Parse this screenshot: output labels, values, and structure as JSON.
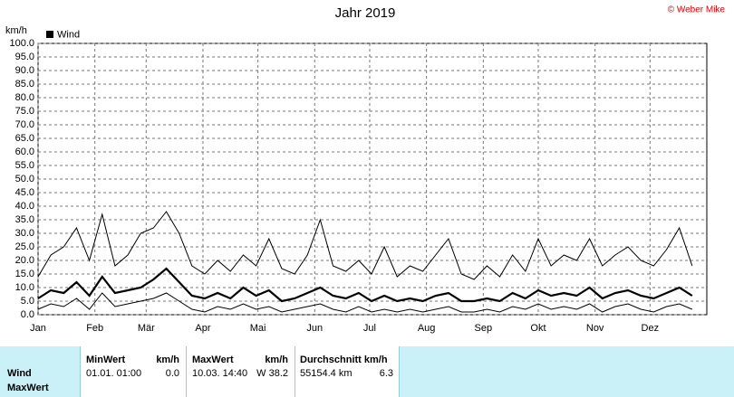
{
  "chart_data": {
    "type": "line",
    "title": "Jahr 2019",
    "copyright": "© Weber Mike",
    "y_label": "km/h",
    "legend": "Wind",
    "grid": true,
    "xlim": [
      1,
      366
    ],
    "xticks": [
      {
        "value": 1,
        "label": "Jan"
      },
      {
        "value": 32,
        "label": "Feb"
      },
      {
        "value": 60,
        "label": "Mär"
      },
      {
        "value": 91,
        "label": "Apr"
      },
      {
        "value": 121,
        "label": "Mai"
      },
      {
        "value": 152,
        "label": "Jun"
      },
      {
        "value": 182,
        "label": "Jul"
      },
      {
        "value": 213,
        "label": "Aug"
      },
      {
        "value": 244,
        "label": "Sep"
      },
      {
        "value": 274,
        "label": "Okt"
      },
      {
        "value": 305,
        "label": "Nov"
      },
      {
        "value": 335,
        "label": "Dez"
      }
    ],
    "ylim": [
      0,
      100
    ],
    "yticks": [
      {
        "value": 0,
        "label": "0.0"
      },
      {
        "value": 5,
        "label": "5.0"
      },
      {
        "value": 10,
        "label": "10.0"
      },
      {
        "value": 15,
        "label": "15.0"
      },
      {
        "value": 20,
        "label": "20.0"
      },
      {
        "value": 25,
        "label": "25.0"
      },
      {
        "value": 30,
        "label": "30.0"
      },
      {
        "value": 35,
        "label": "35.0"
      },
      {
        "value": 40,
        "label": "40.0"
      },
      {
        "value": 45,
        "label": "45.0"
      },
      {
        "value": 50,
        "label": "50.0"
      },
      {
        "value": 55,
        "label": "55.0"
      },
      {
        "value": 60,
        "label": "60.0"
      },
      {
        "value": 65,
        "label": "65.0"
      },
      {
        "value": 70,
        "label": "70.0"
      },
      {
        "value": 75,
        "label": "75.0"
      },
      {
        "value": 80,
        "label": "80.0"
      },
      {
        "value": 85,
        "label": "85.0"
      },
      {
        "value": 90,
        "label": "90.0"
      },
      {
        "value": 95,
        "label": "95.0"
      },
      {
        "value": 100,
        "label": "100.0"
      }
    ],
    "x": [
      1,
      8,
      15,
      22,
      29,
      36,
      43,
      50,
      57,
      64,
      71,
      78,
      85,
      92,
      99,
      106,
      113,
      120,
      127,
      134,
      141,
      148,
      155,
      162,
      169,
      176,
      183,
      190,
      197,
      204,
      211,
      218,
      225,
      232,
      239,
      246,
      253,
      260,
      267,
      274,
      281,
      288,
      295,
      302,
      309,
      316,
      323,
      330,
      337,
      344,
      351,
      358
    ],
    "series": [
      {
        "color": "#000000",
        "width": 1,
        "values": [
          14,
          22,
          25,
          32,
          20,
          37,
          18,
          22,
          30,
          32,
          38,
          30,
          18,
          15,
          20,
          16,
          22,
          18,
          28,
          17,
          15,
          22,
          35,
          18,
          16,
          20,
          15,
          25,
          14,
          18,
          16,
          22,
          28,
          15,
          13,
          18,
          14,
          22,
          16,
          28,
          18,
          22,
          20,
          28,
          18,
          22,
          25,
          20,
          18,
          24,
          32,
          18
        ]
      },
      {
        "color": "#000000",
        "width": 2.2,
        "values": [
          6,
          9,
          8,
          12,
          7,
          14,
          8,
          9,
          10,
          13,
          17,
          12,
          7,
          6,
          8,
          6,
          10,
          7,
          9,
          5,
          6,
          8,
          10,
          7,
          6,
          8,
          5,
          7,
          5,
          6,
          5,
          7,
          8,
          5,
          5,
          6,
          5,
          8,
          6,
          9,
          7,
          8,
          7,
          10,
          6,
          8,
          9,
          7,
          6,
          8,
          10,
          7
        ]
      },
      {
        "color": "#000000",
        "width": 1,
        "values": [
          2,
          4,
          3,
          6,
          2,
          8,
          3,
          4,
          5,
          6,
          8,
          5,
          2,
          1,
          3,
          2,
          4,
          2,
          3,
          1,
          2,
          3,
          4,
          2,
          1,
          3,
          1,
          2,
          1,
          2,
          1,
          2,
          3,
          1,
          1,
          2,
          1,
          3,
          2,
          4,
          2,
          3,
          2,
          4,
          1,
          3,
          4,
          2,
          1,
          3,
          4,
          2
        ]
      }
    ]
  },
  "table": {
    "header": [
      "MinWert",
      "km/h",
      "MaxWert",
      "km/h",
      "Durchschnitt km/h"
    ],
    "rows": [
      {
        "label": "Wind",
        "cells": [
          "01.01.  01:00",
          "0.0",
          "10.03.  14:40",
          "W 38.2",
          "55154.4 km",
          "6.3"
        ]
      },
      {
        "label": "MaxWert",
        "cells": []
      }
    ]
  }
}
